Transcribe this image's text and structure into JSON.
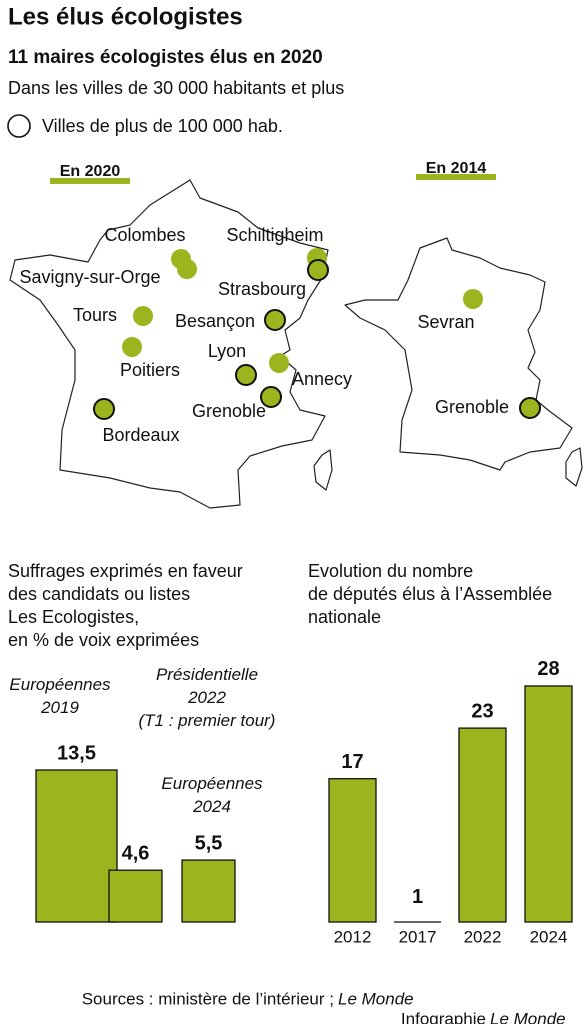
{
  "title": "Les élus écologistes",
  "subtitle": "11 maires écologistes élus en 2020",
  "note": "Dans les villes de 30 000 habitants et plus",
  "legend": "Villes de plus  de 100 000 hab.",
  "maps": [
    {
      "label": "En 2020",
      "cities": [
        {
          "name": "Colombes",
          "large": false
        },
        {
          "name": "Savigny-sur-Orge",
          "large": false
        },
        {
          "name": "Schiltigheim",
          "large": false
        },
        {
          "name": "Strasbourg",
          "large": true
        },
        {
          "name": "Tours",
          "large": false
        },
        {
          "name": "Besançon",
          "large": true
        },
        {
          "name": "Poitiers",
          "large": false
        },
        {
          "name": "Lyon",
          "large": true
        },
        {
          "name": "Annecy",
          "large": false
        },
        {
          "name": "Grenoble",
          "large": true
        },
        {
          "name": "Bordeaux",
          "large": true
        }
      ]
    },
    {
      "label": "En 2014",
      "cities": [
        {
          "name": "Sevran",
          "large": false
        },
        {
          "name": "Grenoble",
          "large": true
        }
      ]
    }
  ],
  "chart_data": [
    {
      "type": "bar",
      "title": [
        "Suffrages exprimés en faveur",
        "des candidats ou listes",
        "Les Ecologistes,",
        "en % de voix exprimées"
      ],
      "categories": [
        "Européennes\n2019",
        "Présidentielle\n2022\n(T1 : premier tour)",
        "Européennes\n2024"
      ],
      "values": [
        13.5,
        4.6,
        5.5
      ],
      "value_labels": [
        "13,5",
        "4,6",
        "5,5"
      ],
      "color": "#9ab51e"
    },
    {
      "type": "bar",
      "title": [
        "Evolution du nombre",
        "de députés  élus à l’Assemblée",
        "nationale"
      ],
      "categories": [
        "2012",
        "2017",
        "2022",
        "2024"
      ],
      "values": [
        17,
        1,
        23,
        28
      ],
      "color": "#9ab51e"
    }
  ],
  "sources": [
    "Sources : ministère de l’intérieur ;",
    "Le Monde"
  ],
  "credit": [
    "Infographie",
    "Le Monde"
  ]
}
